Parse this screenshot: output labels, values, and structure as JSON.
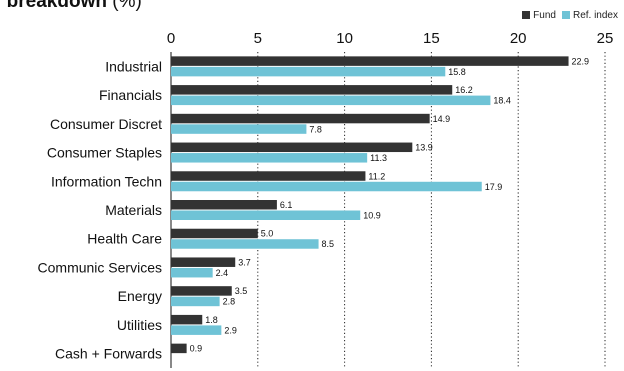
{
  "title_bold": "r breakdown",
  "title_suffix": " (%)",
  "colors": {
    "fund": "#333333",
    "ref": "#6fc3d6",
    "grid": "#222222"
  },
  "chart_data": {
    "type": "bar",
    "orientation": "horizontal",
    "categories": [
      "Industrial",
      "Financials",
      "Consumer Discret",
      "Consumer Staples",
      "Information Techn",
      "Materials",
      "Health Care",
      "Communic Services",
      "Energy",
      "Utilities",
      "Cash + Forwards"
    ],
    "series": [
      {
        "name": "Fund",
        "values": [
          22.9,
          16.2,
          14.9,
          13.9,
          11.2,
          6.1,
          5.0,
          3.7,
          3.5,
          1.8,
          0.9
        ]
      },
      {
        "name": "Ref. index",
        "values": [
          15.8,
          18.4,
          7.8,
          11.3,
          17.9,
          10.9,
          8.5,
          2.4,
          2.8,
          2.9,
          null
        ]
      }
    ],
    "xlim": [
      0,
      25
    ],
    "xticks": [
      0,
      5,
      10,
      15,
      20,
      25
    ],
    "grid": true,
    "legend": "top-right"
  }
}
